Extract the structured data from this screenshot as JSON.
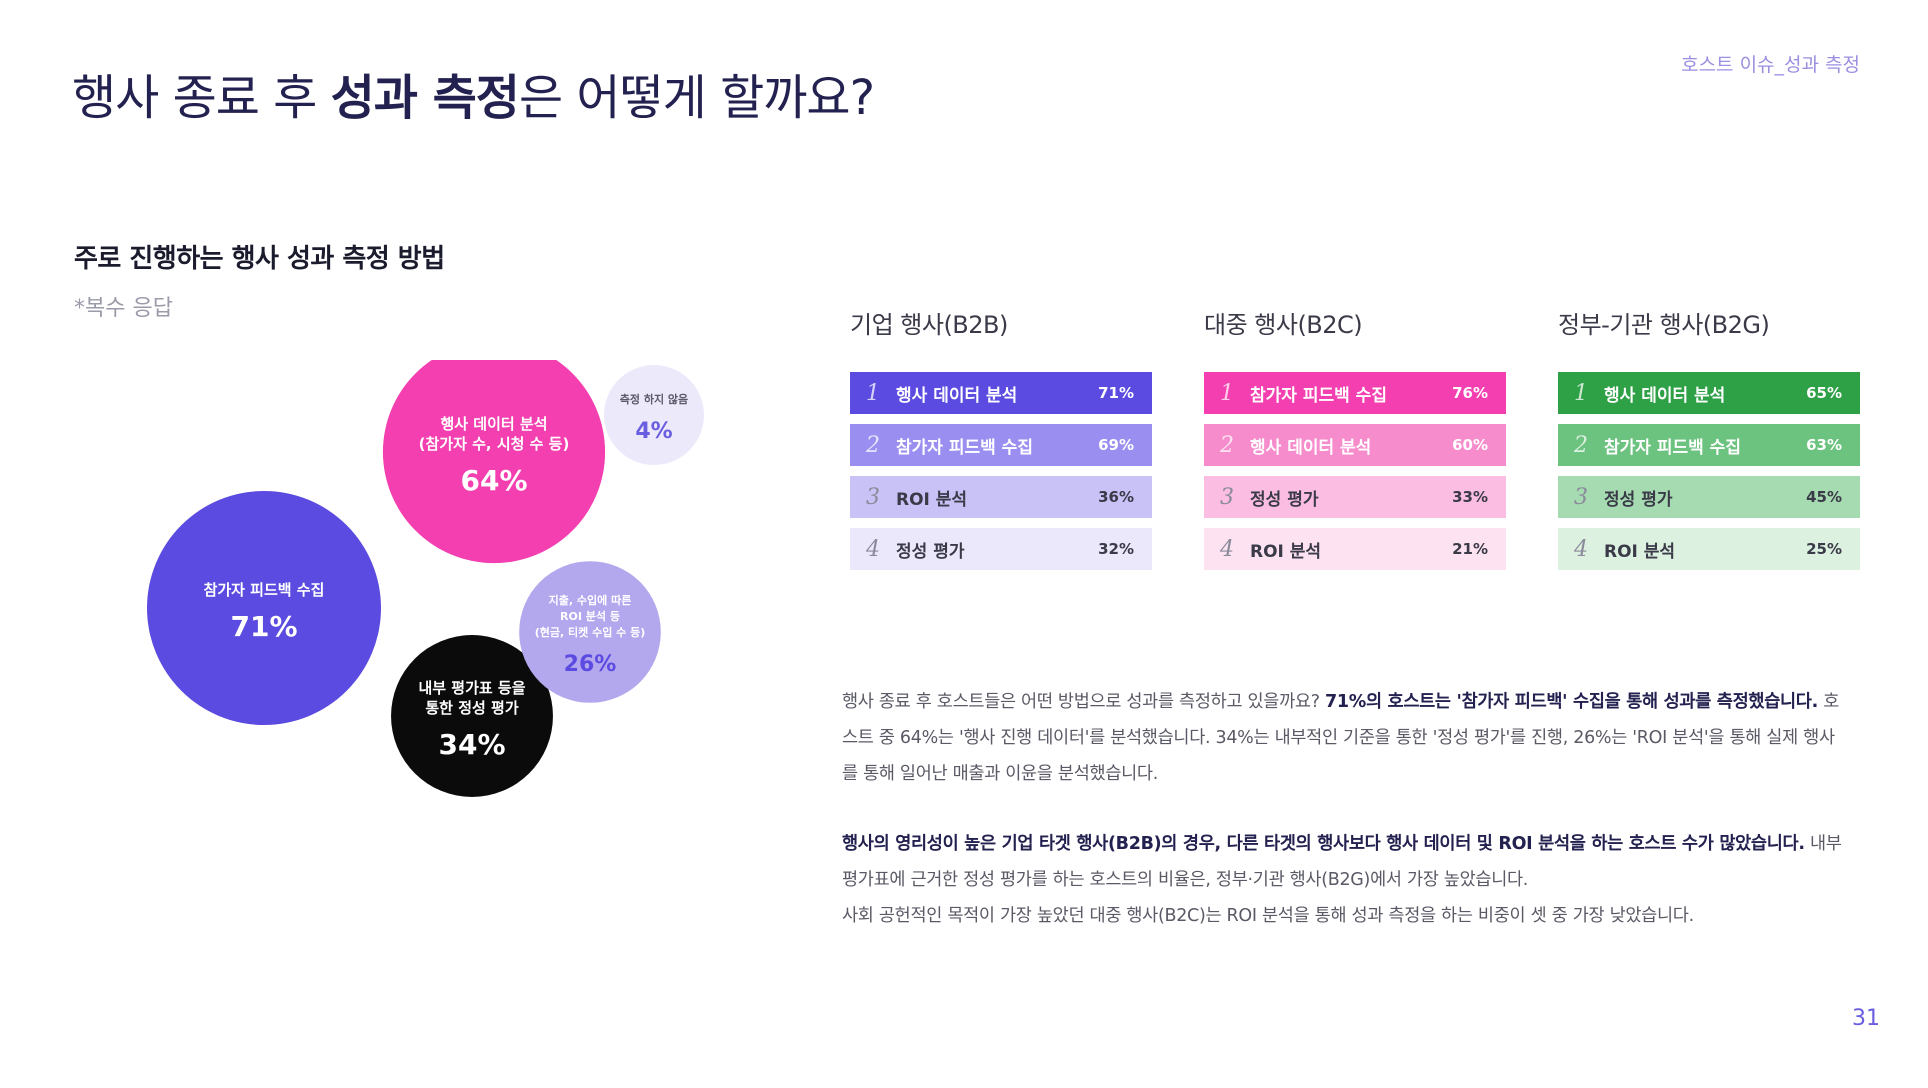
{
  "header": {
    "title_part1": "행사 종료 후 ",
    "title_bold": "성과 측정",
    "title_part2": "은 어떻게 할까요?",
    "section_tag": "호스트 이슈_성과 측정",
    "page_number": "31"
  },
  "chart_heading": {
    "title": "주로 진행하는 행사 성과 측정 방법",
    "note": "*복수 응답"
  },
  "chart_data": [
    {
      "type": "bubble",
      "items": [
        {
          "label_lines": [
            "참가자 피드백 수집"
          ],
          "value": 71,
          "value_label": "71%",
          "color": "#5b4be0",
          "text_color": "#ffffff"
        },
        {
          "label_lines": [
            "행사 데이터 분석",
            "(참가자 수, 시청 수 등)"
          ],
          "value": 64,
          "value_label": "64%",
          "color": "#f33fb0",
          "text_color": "#ffffff"
        },
        {
          "label_lines": [
            "내부 평가표 등을",
            "통한 정성 평가"
          ],
          "value": 34,
          "value_label": "34%",
          "color": "#0b0b0b",
          "text_color": "#ffffff"
        },
        {
          "label_lines": [
            "지출, 수입에 따른",
            "ROI 분석 등",
            "(현금, 티켓 수입 수 등)"
          ],
          "value": 26,
          "value_label": "26%",
          "color": "#b3a8ee",
          "text_color": "#ffffff",
          "value_color": "#5b4be0"
        },
        {
          "label_lines": [
            "측정 하지 않음"
          ],
          "value": 4,
          "value_label": "4%",
          "color": "#ece9fb",
          "text_color": "#5a5a6a",
          "value_color": "#6a5ee0"
        }
      ]
    },
    {
      "type": "table",
      "title": "기업 행사(B2B)",
      "rows": [
        {
          "rank": "1",
          "label": "행사 데이터 분석",
          "value": "71%"
        },
        {
          "rank": "2",
          "label": "참가자 피드백 수집",
          "value": "69%"
        },
        {
          "rank": "3",
          "label": "ROI 분석",
          "value": "36%"
        },
        {
          "rank": "4",
          "label": "정성 평가",
          "value": "32%"
        }
      ]
    },
    {
      "type": "table",
      "title": "대중 행사(B2C)",
      "rows": [
        {
          "rank": "1",
          "label": "참가자 피드백 수집",
          "value": "76%"
        },
        {
          "rank": "2",
          "label": "행사 데이터 분석",
          "value": "60%"
        },
        {
          "rank": "3",
          "label": "정성 평가",
          "value": "33%"
        },
        {
          "rank": "4",
          "label": "ROI 분석",
          "value": "21%"
        }
      ]
    },
    {
      "type": "table",
      "title": "정부-기관 행사(B2G)",
      "rows": [
        {
          "rank": "1",
          "label": "행사 데이터 분석",
          "value": "65%"
        },
        {
          "rank": "2",
          "label": "참가자 피드백 수집",
          "value": "63%"
        },
        {
          "rank": "3",
          "label": "정성 평가",
          "value": "45%"
        },
        {
          "rank": "4",
          "label": "ROI 분석",
          "value": "25%"
        }
      ]
    }
  ],
  "table_colors": {
    "b2b": [
      "#5b4be0",
      "#9a8ff0",
      "#c9c2f7",
      "#ebe8fc"
    ],
    "b2c": [
      "#f33fb0",
      "#f78ccd",
      "#fbbee2",
      "#fde3f2"
    ],
    "b2g": [
      "#2ea046",
      "#6cc27f",
      "#a6dbb1",
      "#dcf1e0"
    ],
    "text_light": "#ffffff",
    "text_dark": "#3a3a48"
  },
  "body_text": {
    "p1_a": "행사 종료 후 호스트들은 어떤 방법으로 성과를 측정하고 있을까요? ",
    "p1_b": "71%의 호스트는 '참가자 피드백' 수집을 통해 성과를 측정했습니다.",
    "p1_c": " 호스트 중 64%는 '행사 진행 데이터'를 분석했습니다. 34%는 내부적인 기준을 통한 '정성 평가'를 진행, 26%는 'ROI 분석'을 통해 실제 행사를 통해 일어난 매출과 이윤을 분석했습니다.",
    "p2_a": "행사의 영리성이 높은 기업 타겟 행사(B2B)의 경우, 다른 타겟의 행사보다 행사 데이터 및 ROI 분석을 하는 호스트 수가 많았습니다.",
    "p2_b": " 내부 평가표에 근거한 정성 평가를 하는 호스트의 비율은, 정부·기관 행사(B2G)에서 가장 높았습니다.",
    "p2_c": "사회 공헌적인 목적이 가장 높았던 대중 행사(B2C)는 ROI 분석을 통해 성과 측정을 하는 비중이 셋 중 가장 낮았습니다."
  }
}
